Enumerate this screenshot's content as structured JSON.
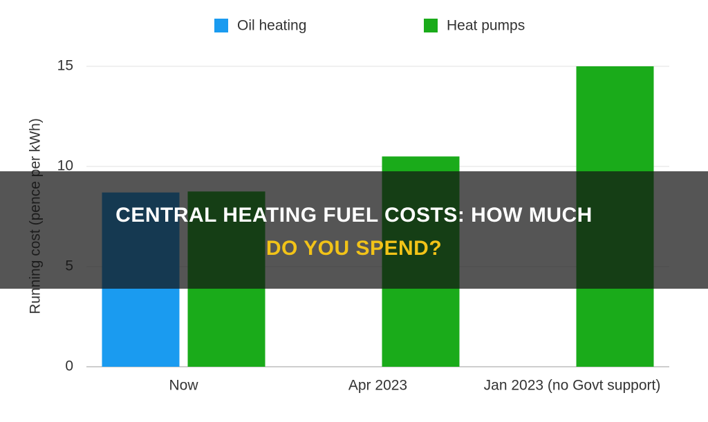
{
  "chart_data": {
    "type": "bar",
    "y_label": "Running cost (pence per kWh)",
    "categories": [
      "Now",
      "Apr 2023",
      "Jan 2023 (no Govt support)"
    ],
    "series": [
      {
        "name": "Oil heating",
        "color": "#1a9bf0",
        "values": [
          8.7,
          null,
          null
        ]
      },
      {
        "name": "Heat pumps",
        "color": "#1aab1a",
        "values": [
          8.75,
          10.5,
          15
        ]
      }
    ],
    "ylim": [
      0,
      15
    ],
    "yticks": [
      0,
      5,
      10,
      15
    ],
    "grid": true,
    "legend": "top"
  },
  "overlay": {
    "title_lines": [
      "CENTRAL HEATING FUEL COSTS: HOW MUCH",
      "DO YOU SPEND?"
    ]
  }
}
